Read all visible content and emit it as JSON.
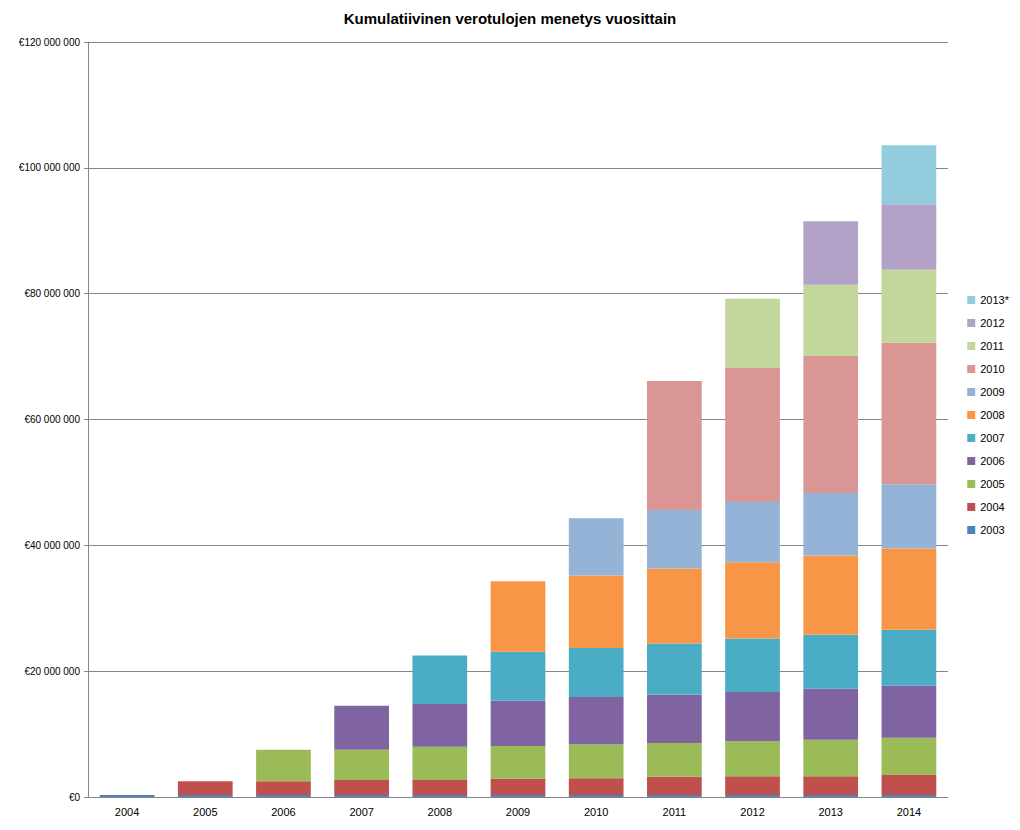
{
  "chart_data": {
    "type": "bar",
    "title": "Kumulatiivinen verotulojen menetys vuosittain",
    "categories": [
      "2004",
      "2005",
      "2006",
      "2007",
      "2008",
      "2009",
      "2010",
      "2011",
      "2012",
      "2013",
      "2014"
    ],
    "series": [
      {
        "name": "2003",
        "color": "#4F81BD",
        "values": [
          300000,
          300000,
          300000,
          300000,
          300000,
          300000,
          300000,
          300000,
          300000,
          300000,
          300000
        ]
      },
      {
        "name": "2004",
        "color": "#C0504D",
        "values": [
          null,
          2200000,
          2200000,
          2400000,
          2400000,
          2600000,
          2700000,
          2900000,
          3000000,
          3000000,
          3200000
        ]
      },
      {
        "name": "2005",
        "color": "#9BBB59",
        "values": [
          null,
          null,
          5000000,
          4800000,
          5300000,
          5200000,
          5400000,
          5400000,
          5600000,
          5800000,
          5900000
        ]
      },
      {
        "name": "2006",
        "color": "#8064A2",
        "values": [
          null,
          null,
          null,
          7000000,
          6800000,
          7200000,
          7500000,
          7700000,
          7800000,
          8100000,
          8300000
        ]
      },
      {
        "name": "2007",
        "color": "#4BACC6",
        "values": [
          null,
          null,
          null,
          null,
          7700000,
          7800000,
          7800000,
          8100000,
          8500000,
          8600000,
          8900000
        ]
      },
      {
        "name": "2008",
        "color": "#F79646",
        "values": [
          null,
          null,
          null,
          null,
          null,
          11200000,
          11500000,
          11900000,
          12100000,
          12600000,
          12900000
        ]
      },
      {
        "name": "2009",
        "color": "#95B3D7",
        "values": [
          null,
          null,
          null,
          null,
          null,
          null,
          9100000,
          9300000,
          9600000,
          9900000,
          10200000
        ]
      },
      {
        "name": "2010",
        "color": "#D99694",
        "values": [
          null,
          null,
          null,
          null,
          null,
          null,
          null,
          20500000,
          21300000,
          21800000,
          22500000
        ]
      },
      {
        "name": "2011",
        "color": "#C3D69B",
        "values": [
          null,
          null,
          null,
          null,
          null,
          null,
          null,
          null,
          11000000,
          11300000,
          11600000
        ]
      },
      {
        "name": "2012",
        "color": "#B2A2C7",
        "values": [
          null,
          null,
          null,
          null,
          null,
          null,
          null,
          null,
          null,
          10100000,
          10400000
        ]
      },
      {
        "name": "2013*",
        "color": "#93CDDD",
        "values": [
          null,
          null,
          null,
          null,
          null,
          null,
          null,
          null,
          null,
          null,
          9400000
        ]
      }
    ],
    "ylim": [
      0,
      120000000
    ],
    "yticks": [
      {
        "value": 0,
        "label": "€0"
      },
      {
        "value": 20000000,
        "label": "€20 000 000"
      },
      {
        "value": 40000000,
        "label": "€40 000 000"
      },
      {
        "value": 60000000,
        "label": "€60 000 000"
      },
      {
        "value": 80000000,
        "label": "€80 000 000"
      },
      {
        "value": 100000000,
        "label": "€100 000 000"
      },
      {
        "value": 120000000,
        "label": "€120 000 000"
      }
    ],
    "stacked": true,
    "grid": true,
    "legend": "right"
  }
}
